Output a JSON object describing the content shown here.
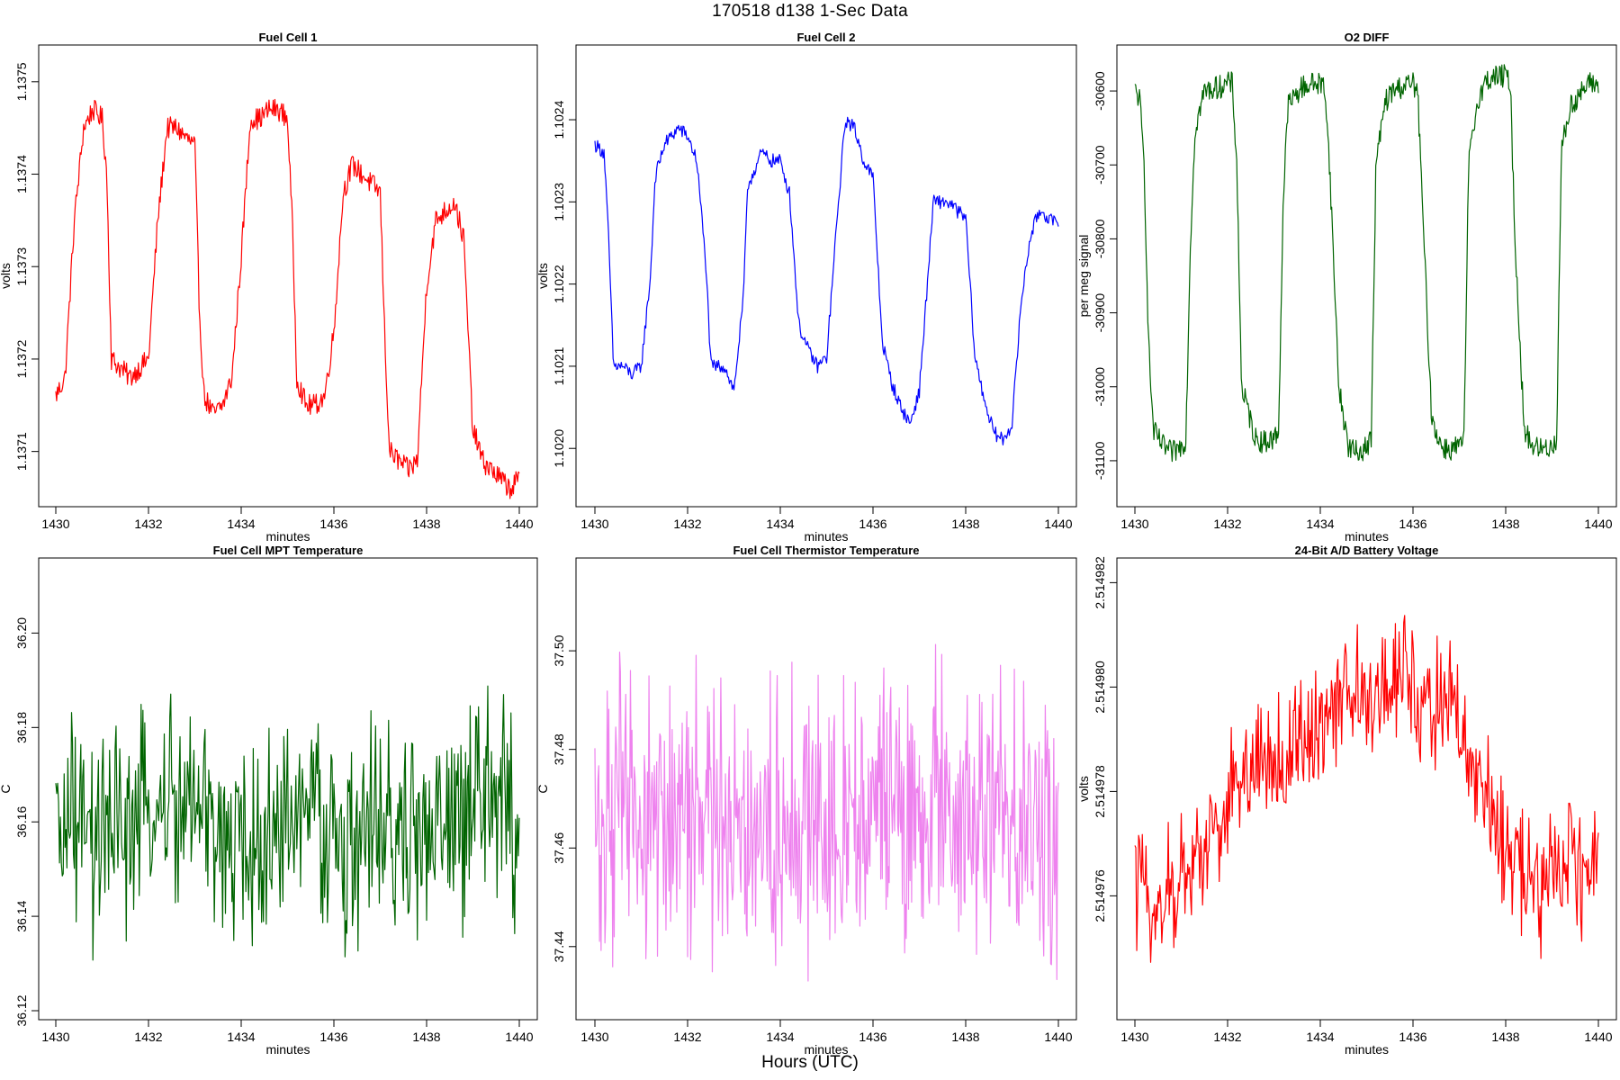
{
  "page": {
    "title": "170518   d138   1-Sec Data",
    "xlabel_global": "Hours (UTC)"
  },
  "chart_data": [
    {
      "type": "line",
      "title": "Fuel Cell 1",
      "xlabel": "minutes",
      "ylabel": "volts",
      "color": "#ff0000",
      "xlim": [
        1430,
        1440
      ],
      "ylim": [
        1.13705,
        1.13753
      ],
      "xticks": [
        1430,
        1432,
        1434,
        1436,
        1438,
        1440
      ],
      "yticks": [
        1.1371,
        1.1372,
        1.1373,
        1.1374,
        1.1375
      ],
      "ytick_labels": [
        "1.1371",
        "1.1372",
        "1.1373",
        "1.1374",
        "1.1375"
      ],
      "series": [
        {
          "name": "Fuel Cell 1",
          "x": [
            1430,
            1430.2,
            1430.4,
            1430.6,
            1430.8,
            1431,
            1431.1,
            1431.2,
            1431.4,
            1431.6,
            1431.8,
            1432,
            1432.2,
            1432.4,
            1432.6,
            1432.8,
            1433,
            1433.1,
            1433.2,
            1433.4,
            1433.6,
            1433.8,
            1434,
            1434.2,
            1434.4,
            1434.6,
            1434.8,
            1435,
            1435.1,
            1435.2,
            1435.4,
            1435.6,
            1435.8,
            1436,
            1436.2,
            1436.4,
            1436.6,
            1436.8,
            1437,
            1437.1,
            1437.2,
            1437.4,
            1437.6,
            1437.8,
            1438,
            1438.2,
            1438.4,
            1438.6,
            1438.8,
            1439,
            1439.1,
            1439.2,
            1439.4,
            1439.6,
            1439.8,
            1440
          ],
          "y": [
            1.13716,
            1.13718,
            1.13735,
            1.13745,
            1.13747,
            1.13746,
            1.1374,
            1.1372,
            1.13719,
            1.13718,
            1.13719,
            1.1372,
            1.13735,
            1.13745,
            1.13745,
            1.13744,
            1.13743,
            1.13725,
            1.13716,
            1.13714,
            1.13715,
            1.13718,
            1.13731,
            1.13746,
            1.13746,
            1.13747,
            1.13747,
            1.13746,
            1.13735,
            1.13718,
            1.13715,
            1.13715,
            1.13716,
            1.13723,
            1.13738,
            1.13741,
            1.1374,
            1.13739,
            1.13738,
            1.13722,
            1.1371,
            1.13709,
            1.13708,
            1.13709,
            1.13728,
            1.13735,
            1.13736,
            1.13737,
            1.13733,
            1.13712,
            1.13711,
            1.13709,
            1.13708,
            1.13707,
            1.13706,
            1.13707
          ]
        }
      ]
    },
    {
      "type": "line",
      "title": "Fuel Cell 2",
      "xlabel": "minutes",
      "ylabel": "volts",
      "color": "#0000ff",
      "xlim": [
        1430,
        1440
      ],
      "ylim": [
        1.10194,
        1.10248
      ],
      "xticks": [
        1430,
        1432,
        1434,
        1436,
        1438,
        1440
      ],
      "yticks": [
        1.102,
        1.1021,
        1.1022,
        1.1023,
        1.1024
      ],
      "ytick_labels": [
        "1.1020",
        "1.1021",
        "1.1022",
        "1.1023",
        "1.1024"
      ],
      "series": [
        {
          "name": "Fuel Cell 2",
          "x": [
            1430,
            1430.2,
            1430.3,
            1430.4,
            1430.6,
            1430.8,
            1431,
            1431.2,
            1431.3,
            1431.5,
            1431.8,
            1432,
            1432.2,
            1432.4,
            1432.5,
            1432.8,
            1433,
            1433.2,
            1433.3,
            1433.6,
            1433.8,
            1434,
            1434.2,
            1434.4,
            1434.6,
            1434.8,
            1435,
            1435.2,
            1435.4,
            1435.6,
            1435.8,
            1436,
            1436.2,
            1436.4,
            1436.6,
            1436.8,
            1437,
            1437.2,
            1437.3,
            1437.6,
            1437.8,
            1438,
            1438.2,
            1438.4,
            1438.6,
            1438.8,
            1439,
            1439.2,
            1439.4,
            1439.6,
            1439.8,
            1440
          ],
          "y": [
            1.10237,
            1.10236,
            1.10225,
            1.1021,
            1.1021,
            1.10209,
            1.1021,
            1.10221,
            1.10233,
            1.10237,
            1.10239,
            1.10238,
            1.10235,
            1.10222,
            1.1021,
            1.1021,
            1.10207,
            1.10218,
            1.10232,
            1.10236,
            1.10235,
            1.10235,
            1.10231,
            1.10215,
            1.10212,
            1.1021,
            1.10211,
            1.10226,
            1.1024,
            1.10239,
            1.10235,
            1.10233,
            1.10213,
            1.10208,
            1.10205,
            1.10203,
            1.10207,
            1.10222,
            1.1023,
            1.1023,
            1.10229,
            1.10228,
            1.10211,
            1.10206,
            1.10202,
            1.10201,
            1.10203,
            1.10218,
            1.10226,
            1.10229,
            1.10228,
            1.10227
          ]
        }
      ]
    },
    {
      "type": "line",
      "title": "O2 DIFF",
      "xlabel": "minutes",
      "ylabel": "per meg signal",
      "color": "#006400",
      "xlim": [
        1430,
        1440
      ],
      "ylim": [
        -31150,
        -30550
      ],
      "xticks": [
        1430,
        1432,
        1434,
        1436,
        1438,
        1440
      ],
      "yticks": [
        -31100,
        -31000,
        -30900,
        -30800,
        -30700,
        -30600
      ],
      "ytick_labels": [
        "-31100",
        "-31000",
        "-30900",
        "-30800",
        "-30700",
        "-30600"
      ],
      "series": [
        {
          "name": "O2 DIFF",
          "x": [
            1430,
            1430.1,
            1430.2,
            1430.3,
            1430.4,
            1430.6,
            1430.8,
            1431,
            1431.1,
            1431.2,
            1431.3,
            1431.5,
            1431.8,
            1432,
            1432.1,
            1432.2,
            1432.3,
            1432.6,
            1432.8,
            1433,
            1433.1,
            1433.2,
            1433.3,
            1433.6,
            1433.8,
            1434,
            1434.1,
            1434.2,
            1434.4,
            1434.6,
            1434.8,
            1435,
            1435.1,
            1435.2,
            1435.4,
            1435.6,
            1435.8,
            1436,
            1436.1,
            1436.2,
            1436.4,
            1436.6,
            1436.8,
            1437,
            1437.1,
            1437.2,
            1437.4,
            1437.6,
            1437.8,
            1438,
            1438.1,
            1438.2,
            1438.4,
            1438.6,
            1438.8,
            1439,
            1439.1,
            1439.2,
            1439.4,
            1439.6,
            1439.8,
            1440
          ],
          "y": [
            -30600,
            -30610,
            -30700,
            -30950,
            -31060,
            -31080,
            -31090,
            -31080,
            -31070,
            -30800,
            -30650,
            -30600,
            -30595,
            -30590,
            -30590,
            -30700,
            -31000,
            -31070,
            -31075,
            -31070,
            -31060,
            -30750,
            -30620,
            -30595,
            -30590,
            -30590,
            -30595,
            -30700,
            -31000,
            -31080,
            -31090,
            -31080,
            -31070,
            -30700,
            -30615,
            -30598,
            -30593,
            -30590,
            -30600,
            -30750,
            -31040,
            -31080,
            -31085,
            -31080,
            -31075,
            -30700,
            -30610,
            -30585,
            -30580,
            -30580,
            -30590,
            -30800,
            -31060,
            -31080,
            -31085,
            -31080,
            -31070,
            -30680,
            -30620,
            -30605,
            -30590,
            -30590
          ]
        }
      ]
    },
    {
      "type": "line",
      "title": "Fuel Cell MPT Temperature",
      "xlabel": "minutes",
      "ylabel": "C",
      "color": "#006400",
      "xlim": [
        1430,
        1440
      ],
      "ylim": [
        36.12,
        36.214
      ],
      "xticks": [
        1430,
        1432,
        1434,
        1436,
        1438,
        1440
      ],
      "yticks": [
        36.12,
        36.14,
        36.16,
        36.18,
        36.2
      ],
      "ytick_labels": [
        "36.12",
        "36.14",
        "36.16",
        "36.18",
        "36.20"
      ],
      "series": [
        {
          "name": "Fuel Cell MPT Temperature",
          "x": [
            1430,
            1430.2,
            1430.4,
            1430.6,
            1430.8,
            1431,
            1431.2,
            1431.4,
            1431.6,
            1431.8,
            1432,
            1432.2,
            1432.4,
            1432.6,
            1432.8,
            1433,
            1433.2,
            1433.4,
            1433.6,
            1433.8,
            1434,
            1434.2,
            1434.4,
            1434.6,
            1434.8,
            1435,
            1435.2,
            1435.4,
            1435.6,
            1435.8,
            1436,
            1436.2,
            1436.4,
            1436.6,
            1436.8,
            1437,
            1437.2,
            1437.4,
            1437.6,
            1437.8,
            1438,
            1438.2,
            1438.4,
            1438.6,
            1438.8,
            1439,
            1439.2,
            1439.4,
            1439.6,
            1439.8,
            1440
          ],
          "y": [
            36.155,
            36.158,
            36.16,
            36.156,
            36.155,
            36.157,
            36.154,
            36.158,
            36.16,
            36.159,
            36.16,
            36.161,
            36.165,
            36.162,
            36.163,
            36.162,
            36.16,
            36.158,
            36.157,
            36.156,
            36.155,
            36.154,
            36.155,
            36.156,
            36.158,
            36.16,
            36.162,
            36.163,
            36.16,
            36.158,
            36.157,
            36.155,
            36.155,
            36.156,
            36.158,
            36.16,
            36.158,
            36.155,
            36.156,
            36.157,
            36.158,
            36.156,
            36.157,
            36.159,
            36.16,
            36.162,
            36.163,
            36.165,
            36.166,
            36.162,
            36.155
          ]
        }
      ]
    },
    {
      "type": "line",
      "title": "Fuel Cell Thermistor Temperature",
      "xlabel": "minutes",
      "ylabel": "C",
      "color": "#ee82ee",
      "xlim": [
        1430,
        1440
      ],
      "ylim": [
        37.427,
        37.517
      ],
      "xticks": [
        1430,
        1432,
        1434,
        1436,
        1438,
        1440
      ],
      "yticks": [
        37.44,
        37.46,
        37.48,
        37.5
      ],
      "ytick_labels": [
        "37.44",
        "37.46",
        "37.48",
        "37.50"
      ],
      "series": [
        {
          "name": "Fuel Cell Thermistor Temperature",
          "x": [
            1430,
            1430.2,
            1430.4,
            1430.6,
            1430.8,
            1431,
            1431.2,
            1431.4,
            1431.6,
            1431.8,
            1432,
            1432.2,
            1432.4,
            1432.6,
            1432.8,
            1433,
            1433.2,
            1433.4,
            1433.6,
            1433.8,
            1434,
            1434.2,
            1434.4,
            1434.6,
            1434.8,
            1435,
            1435.2,
            1435.4,
            1435.6,
            1435.8,
            1436,
            1436.2,
            1436.4,
            1436.6,
            1436.8,
            1437,
            1437.2,
            1437.4,
            1437.6,
            1437.8,
            1438,
            1438.2,
            1438.4,
            1438.6,
            1438.8,
            1439,
            1439.2,
            1439.4,
            1439.6,
            1439.8,
            1440
          ],
          "y": [
            37.465,
            37.466,
            37.468,
            37.466,
            37.465,
            37.464,
            37.466,
            37.467,
            37.465,
            37.464,
            37.466,
            37.467,
            37.466,
            37.465,
            37.466,
            37.467,
            37.468,
            37.466,
            37.465,
            37.466,
            37.464,
            37.465,
            37.466,
            37.467,
            37.466,
            37.465,
            37.466,
            37.468,
            37.467,
            37.466,
            37.466,
            37.468,
            37.467,
            37.466,
            37.465,
            37.466,
            37.467,
            37.468,
            37.466,
            37.465,
            37.466,
            37.467,
            37.466,
            37.467,
            37.468,
            37.466,
            37.465,
            37.466,
            37.465,
            37.464,
            37.465
          ]
        }
      ]
    },
    {
      "type": "line",
      "title": "24-Bit A/D Battery Voltage",
      "xlabel": "minutes",
      "ylabel": "volts",
      "color": "#ff0000",
      "xlim": [
        1430,
        1440
      ],
      "ylim": [
        2.5149738,
        2.5149823
      ],
      "xticks": [
        1430,
        1432,
        1434,
        1436,
        1438,
        1440
      ],
      "yticks": [
        2.514976,
        2.514978,
        2.51498,
        2.514982
      ],
      "ytick_labels": [
        "2.514976",
        "2.514978",
        "2.514980",
        "2.514982"
      ],
      "series": [
        {
          "name": "24-Bit A/D Battery Voltage",
          "x": [
            1430,
            1430.2,
            1430.4,
            1430.6,
            1430.8,
            1431,
            1431.2,
            1431.4,
            1431.6,
            1431.8,
            1432,
            1432.2,
            1432.4,
            1432.6,
            1432.8,
            1433,
            1433.2,
            1433.4,
            1433.6,
            1433.8,
            1434,
            1434.2,
            1434.4,
            1434.6,
            1434.8,
            1435,
            1435.2,
            1435.4,
            1435.6,
            1435.8,
            1436,
            1436.2,
            1436.4,
            1436.6,
            1436.8,
            1437,
            1437.2,
            1437.4,
            1437.6,
            1437.8,
            1438,
            1438.2,
            1438.4,
            1438.6,
            1438.8,
            1439,
            1439.2,
            1439.4,
            1439.6,
            1439.8,
            1440
          ],
          "y": [
            2.5149764,
            2.5149762,
            2.5149758,
            2.5149757,
            2.514976,
            2.5149763,
            2.5149766,
            2.5149769,
            2.5149772,
            2.5149774,
            2.5149777,
            2.5149781,
            2.5149784,
            2.5149786,
            2.5149786,
            2.5149786,
            2.5149785,
            2.5149786,
            2.5149789,
            2.5149791,
            2.5149793,
            2.5149795,
            2.5149797,
            2.5149798,
            2.5149798,
            2.5149797,
            2.5149798,
            2.51498,
            2.5149802,
            2.5149803,
            2.5149802,
            2.5149799,
            2.5149797,
            2.5149796,
            2.5149796,
            2.5149792,
            2.5149787,
            2.5149782,
            2.5149776,
            2.5149772,
            2.5149769,
            2.5149766,
            2.5149764,
            2.5149764,
            2.5149763,
            2.5149763,
            2.5149764,
            2.5149765,
            2.5149766,
            2.5149766,
            2.5149768
          ]
        }
      ]
    }
  ]
}
